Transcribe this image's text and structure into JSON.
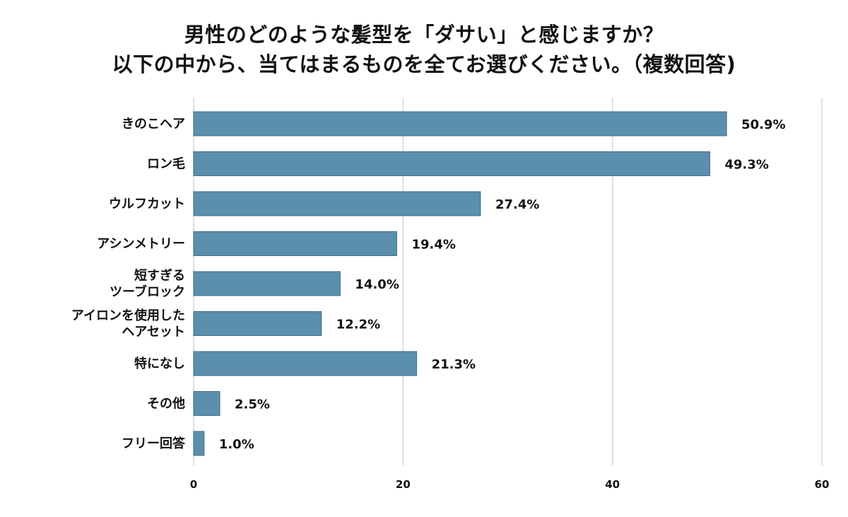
{
  "chart_data": {
    "type": "bar",
    "orientation": "horizontal",
    "title_lines": [
      "男性のどのような髪型を「ダサい」と感じますか？",
      "以下の中から、当てはまるものを全てお選びください。（複数回答)"
    ],
    "categories": [
      [
        "きのこヘア"
      ],
      [
        "ロン毛"
      ],
      [
        "ウルフカット"
      ],
      [
        "アシンメトリー"
      ],
      [
        "短すぎる",
        "ツーブロック"
      ],
      [
        "アイロンを使用した",
        "ヘアセット"
      ],
      [
        "特になし"
      ],
      [
        "その他"
      ],
      [
        "フリー回答"
      ]
    ],
    "values": [
      50.9,
      49.3,
      27.4,
      19.4,
      14.0,
      12.2,
      21.3,
      2.5,
      1.0
    ],
    "value_labels": [
      "50.9%",
      "49.3%",
      "27.4%",
      "19.4%",
      "14.0%",
      "12.2%",
      "21.3%",
      "2.5%",
      "1.0%"
    ],
    "xlim": [
      0,
      60
    ],
    "xticks": [
      0,
      20,
      40,
      60
    ],
    "xtick_labels": [
      "0",
      "20",
      "40",
      "60"
    ],
    "grid": "vertical",
    "legend": "none",
    "bar_color": "#5b8fad",
    "bar_stroke_color": "#3e6f8c",
    "grid_color": "#d6d6d6"
  }
}
